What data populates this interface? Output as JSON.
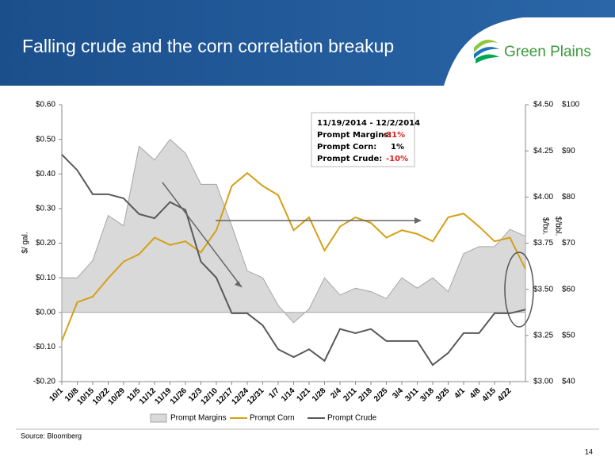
{
  "header": {
    "title": "Falling crude and the corn correlation breakup"
  },
  "logo": {
    "text": "Green Plains"
  },
  "chart_data": {
    "type": "line",
    "ylabel": "$/ gal.",
    "y2label": "$/bu.",
    "y3label": "$/bbl.",
    "categories": [
      "10/1",
      "10/8",
      "10/15",
      "10/22",
      "10/29",
      "11/5",
      "11/12",
      "11/19",
      "11/26",
      "12/3",
      "12/10",
      "12/17",
      "12/24",
      "12/31",
      "1/7",
      "1/14",
      "1/21",
      "1/28",
      "2/4",
      "2/11",
      "2/18",
      "2/25",
      "3/4",
      "3/11",
      "3/18",
      "3/25",
      "4/1",
      "4/8",
      "4/15",
      "4/22",
      null
    ],
    "series": [
      {
        "name": "Prompt Margins",
        "type": "area",
        "color": "#d9d9d9",
        "stroke": "#a6a6a6",
        "axis": "y",
        "values": [
          0.1,
          0.1,
          0.15,
          0.28,
          0.25,
          0.48,
          0.44,
          0.5,
          0.46,
          0.37,
          0.37,
          0.25,
          0.12,
          0.1,
          0.02,
          -0.03,
          0.01,
          0.1,
          0.05,
          0.07,
          0.06,
          0.04,
          0.1,
          0.07,
          0.1,
          0.06,
          0.17,
          0.19,
          0.19,
          0.24,
          0.22
        ]
      },
      {
        "name": "Prompt Corn",
        "type": "line",
        "color": "#d4a017",
        "axis": "y2",
        "values": [
          3.22,
          3.43,
          3.46,
          3.56,
          3.65,
          3.69,
          3.78,
          3.74,
          3.76,
          3.7,
          3.82,
          4.06,
          4.13,
          4.06,
          4.01,
          3.82,
          3.89,
          3.71,
          3.84,
          3.89,
          3.86,
          3.78,
          3.82,
          3.8,
          3.76,
          3.89,
          3.91,
          3.84,
          3.76,
          3.78,
          3.61
        ]
      },
      {
        "name": "Prompt Crude",
        "type": "line",
        "color": "#595959",
        "axis": "y3",
        "values": [
          89.2,
          85.8,
          80.6,
          80.6,
          79.7,
          76.3,
          75.4,
          78.9,
          77.2,
          66.0,
          62.5,
          54.8,
          54.8,
          52.2,
          47.0,
          45.3,
          47.0,
          44.5,
          51.4,
          50.5,
          51.4,
          48.8,
          48.8,
          48.8,
          43.6,
          46.2,
          50.5,
          50.5,
          54.8,
          54.8,
          55.6
        ]
      }
    ],
    "ylim": [
      -0.2,
      0.6
    ],
    "yticks": [
      {
        "value": -0.2,
        "label": "-$0.20"
      },
      {
        "value": -0.1,
        "label": "-$0.10"
      },
      {
        "value": 0,
        "label": "$0.00"
      },
      {
        "value": 0.1,
        "label": "$0.10"
      },
      {
        "value": 0.2,
        "label": "$0.20"
      },
      {
        "value": 0.3,
        "label": "$0.30"
      },
      {
        "value": 0.4,
        "label": "$0.40"
      },
      {
        "value": 0.5,
        "label": "$0.50"
      },
      {
        "value": 0.6,
        "label": "$0.60"
      }
    ],
    "y2lim": [
      3.0,
      4.5
    ],
    "y2ticks": [
      {
        "value": 3.0,
        "label": "$3.00"
      },
      {
        "value": 3.25,
        "label": "$3.25"
      },
      {
        "value": 3.5,
        "label": "$3.50"
      },
      {
        "value": 3.75,
        "label": "$3.75"
      },
      {
        "value": 4.0,
        "label": "$4.00"
      },
      {
        "value": 4.25,
        "label": "$4.25"
      },
      {
        "value": 4.5,
        "label": "$4.50"
      }
    ],
    "y3lim": [
      40,
      100
    ],
    "y3ticks": [
      {
        "value": 40,
        "label": "$40"
      },
      {
        "value": 50,
        "label": "$50"
      },
      {
        "value": 60,
        "label": "$60"
      },
      {
        "value": 70,
        "label": "$70"
      },
      {
        "value": 80,
        "label": "$80"
      },
      {
        "value": 90,
        "label": "$90"
      },
      {
        "value": 100,
        "label": "$100"
      }
    ],
    "grid": false,
    "annotation": {
      "title": "11/19/2014 - 12/2/2014",
      "rows": [
        [
          "Prompt Margins:",
          "-31%"
        ],
        [
          "Prompt Corn:",
          "1%"
        ],
        [
          "Prompt Crude:",
          "-10%"
        ]
      ]
    }
  },
  "footer": {
    "source": "Source: Bloomberg",
    "page": 14
  }
}
